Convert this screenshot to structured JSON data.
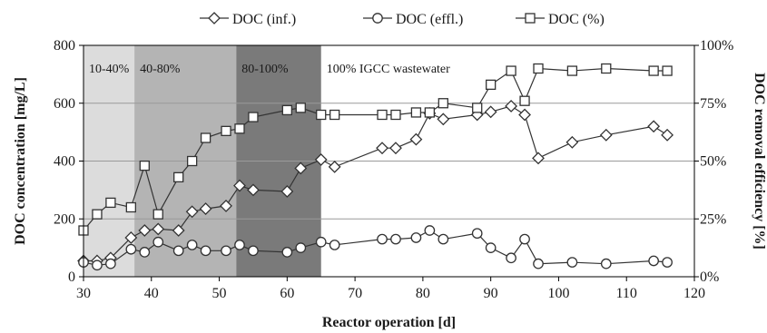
{
  "chart_data": {
    "type": "line",
    "xlabel": "Reactor operation [d]",
    "ylabel": "DOC concentration [mg/L]",
    "y2label": "DOC removal efficiency [%]",
    "xlim": [
      30,
      120
    ],
    "ylim": [
      0,
      800
    ],
    "y2lim": [
      0,
      100
    ],
    "x_ticks": [
      "30",
      "40",
      "50",
      "60",
      "70",
      "80",
      "90",
      "100",
      "110",
      "120"
    ],
    "y_ticks": [
      "0",
      "200",
      "400",
      "600",
      "800"
    ],
    "y2_ticks": [
      "0%",
      "25%",
      "50%",
      "75%",
      "100%"
    ],
    "grid": "horizontal",
    "legend_position": "top",
    "regions": [
      {
        "label": "10-40%",
        "x_start": 30,
        "x_end": 37.5,
        "color": "#dcdcdc"
      },
      {
        "label": "40-80%",
        "x_start": 37.5,
        "x_end": 52.5,
        "color": "#b4b4b4"
      },
      {
        "label": "80-100%",
        "x_start": 52.5,
        "x_end": 65,
        "color": "#7a7a7a"
      },
      {
        "label": "100% IGCC wastewater",
        "x_start": 65,
        "x_end": 120,
        "color": "none"
      }
    ],
    "series": [
      {
        "name": "DOC (inf.)",
        "marker": "diamond",
        "axis": "left",
        "points": [
          [
            30,
            55
          ],
          [
            32,
            55
          ],
          [
            34,
            65
          ],
          [
            37,
            135
          ],
          [
            39,
            160
          ],
          [
            41,
            165
          ],
          [
            44,
            160
          ],
          [
            46,
            225
          ],
          [
            48,
            235
          ],
          [
            51,
            245
          ],
          [
            53,
            315
          ],
          [
            55,
            300
          ],
          [
            60,
            295
          ],
          [
            62,
            375
          ],
          [
            65,
            405
          ],
          [
            67,
            380
          ],
          [
            74,
            445
          ],
          [
            76,
            445
          ],
          [
            79,
            475
          ],
          [
            81,
            565
          ],
          [
            83,
            545
          ],
          [
            88,
            560
          ],
          [
            90,
            570
          ],
          [
            93,
            590
          ],
          [
            95,
            560
          ],
          [
            97,
            410
          ],
          [
            102,
            465
          ],
          [
            107,
            490
          ],
          [
            114,
            520
          ],
          [
            116,
            490
          ]
        ]
      },
      {
        "name": "DOC (effl.)",
        "marker": "circle",
        "axis": "left",
        "points": [
          [
            30,
            50
          ],
          [
            32,
            40
          ],
          [
            34,
            45
          ],
          [
            37,
            95
          ],
          [
            39,
            85
          ],
          [
            41,
            120
          ],
          [
            44,
            90
          ],
          [
            46,
            110
          ],
          [
            48,
            90
          ],
          [
            51,
            90
          ],
          [
            53,
            110
          ],
          [
            55,
            90
          ],
          [
            60,
            85
          ],
          [
            62,
            100
          ],
          [
            65,
            120
          ],
          [
            67,
            110
          ],
          [
            74,
            130
          ],
          [
            76,
            130
          ],
          [
            79,
            135
          ],
          [
            81,
            160
          ],
          [
            83,
            130
          ],
          [
            88,
            150
          ],
          [
            90,
            100
          ],
          [
            93,
            65
          ],
          [
            95,
            130
          ],
          [
            97,
            45
          ],
          [
            102,
            50
          ],
          [
            107,
            45
          ],
          [
            114,
            55
          ],
          [
            116,
            50
          ]
        ]
      },
      {
        "name": "DOC (%)",
        "marker": "square",
        "axis": "right",
        "points": [
          [
            30,
            20
          ],
          [
            32,
            27
          ],
          [
            34,
            32
          ],
          [
            37,
            30
          ],
          [
            39,
            48
          ],
          [
            41,
            27
          ],
          [
            44,
            43
          ],
          [
            46,
            50
          ],
          [
            48,
            60
          ],
          [
            51,
            63
          ],
          [
            53,
            64
          ],
          [
            55,
            69
          ],
          [
            60,
            72
          ],
          [
            62,
            73
          ],
          [
            65,
            70
          ],
          [
            67,
            70
          ],
          [
            74,
            70
          ],
          [
            76,
            70
          ],
          [
            79,
            71
          ],
          [
            81,
            71
          ],
          [
            83,
            75
          ],
          [
            88,
            73
          ],
          [
            90,
            83
          ],
          [
            93,
            89
          ],
          [
            95,
            76
          ],
          [
            97,
            90
          ],
          [
            102,
            89
          ],
          [
            107,
            90
          ],
          [
            114,
            89
          ],
          [
            116,
            89
          ]
        ]
      }
    ]
  }
}
